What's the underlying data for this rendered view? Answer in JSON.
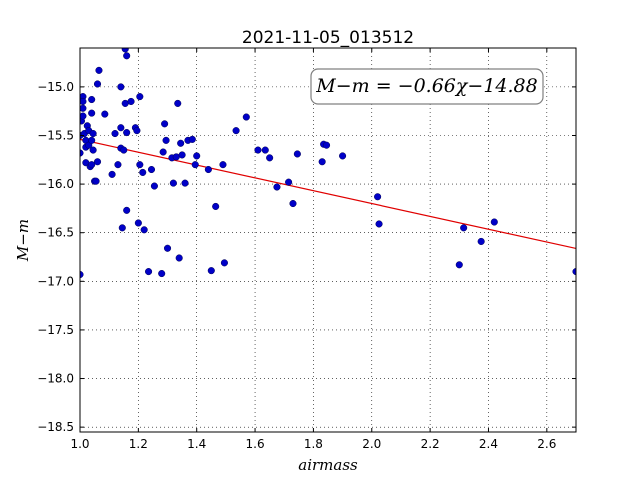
{
  "chart_data": {
    "type": "scatter",
    "title": "2021-11-05_013512",
    "xlabel": "airmass",
    "ylabel": "M−m",
    "xlim": [
      1.0,
      2.7
    ],
    "ylim": [
      -18.55,
      -14.6
    ],
    "xticks": [
      1.0,
      1.2,
      1.4,
      1.6,
      1.8,
      2.0,
      2.2,
      2.4,
      2.6
    ],
    "xtick_labels": [
      "1.0",
      "1.2",
      "1.4",
      "1.6",
      "1.8",
      "2.0",
      "2.2",
      "2.4",
      "2.6"
    ],
    "yticks": [
      -15.0,
      -15.5,
      -16.0,
      -16.5,
      -17.0,
      -17.5,
      -18.0,
      -18.5
    ],
    "ytick_labels": [
      "−15.0",
      "−15.5",
      "−16.0",
      "−16.5",
      "−17.0",
      "−17.5",
      "−18.0",
      "−18.5"
    ],
    "grid": true,
    "annotation": "M−m = −0.66χ−14.88",
    "annotation_position": "top-right",
    "fit": {
      "slope": -0.66,
      "intercept": -14.88,
      "color": "#e00000"
    },
    "point_color": "#0000c8",
    "points": [
      [
        1.0,
        -16.93
      ],
      [
        1.0,
        -15.5
      ],
      [
        1.0,
        -15.68
      ],
      [
        1.005,
        -15.35
      ],
      [
        1.01,
        -15.1
      ],
      [
        1.01,
        -15.15
      ],
      [
        1.01,
        -15.22
      ],
      [
        1.01,
        -15.3
      ],
      [
        1.015,
        -15.48
      ],
      [
        1.02,
        -15.55
      ],
      [
        1.02,
        -15.62
      ],
      [
        1.02,
        -15.78
      ],
      [
        1.025,
        -15.4
      ],
      [
        1.03,
        -15.45
      ],
      [
        1.03,
        -15.6
      ],
      [
        1.035,
        -15.82
      ],
      [
        1.04,
        -15.55
      ],
      [
        1.04,
        -15.8
      ],
      [
        1.04,
        -15.27
      ],
      [
        1.04,
        -15.13
      ],
      [
        1.045,
        -15.65
      ],
      [
        1.045,
        -15.48
      ],
      [
        1.05,
        -15.97
      ],
      [
        1.055,
        -15.97
      ],
      [
        1.06,
        -15.77
      ],
      [
        1.06,
        -14.97
      ],
      [
        1.065,
        -14.83
      ],
      [
        1.085,
        -15.28
      ],
      [
        1.11,
        -15.9
      ],
      [
        1.12,
        -15.48
      ],
      [
        1.13,
        -15.8
      ],
      [
        1.14,
        -15.0
      ],
      [
        1.14,
        -15.42
      ],
      [
        1.14,
        -15.63
      ],
      [
        1.145,
        -16.45
      ],
      [
        1.15,
        -15.65
      ],
      [
        1.155,
        -15.17
      ],
      [
        1.155,
        -14.61
      ],
      [
        1.16,
        -14.68
      ],
      [
        1.16,
        -15.47
      ],
      [
        1.16,
        -16.27
      ],
      [
        1.175,
        -15.15
      ],
      [
        1.19,
        -15.42
      ],
      [
        1.195,
        -15.45
      ],
      [
        1.2,
        -16.4
      ],
      [
        1.205,
        -15.1
      ],
      [
        1.205,
        -15.8
      ],
      [
        1.215,
        -15.88
      ],
      [
        1.22,
        -16.47
      ],
      [
        1.235,
        -16.9
      ],
      [
        1.245,
        -15.85
      ],
      [
        1.255,
        -16.02
      ],
      [
        1.28,
        -16.92
      ],
      [
        1.285,
        -15.67
      ],
      [
        1.29,
        -15.38
      ],
      [
        1.295,
        -15.55
      ],
      [
        1.3,
        -16.66
      ],
      [
        1.315,
        -15.73
      ],
      [
        1.32,
        -15.99
      ],
      [
        1.33,
        -15.72
      ],
      [
        1.335,
        -15.17
      ],
      [
        1.34,
        -16.76
      ],
      [
        1.345,
        -15.58
      ],
      [
        1.35,
        -15.7
      ],
      [
        1.36,
        -15.99
      ],
      [
        1.37,
        -15.55
      ],
      [
        1.385,
        -15.54
      ],
      [
        1.395,
        -15.8
      ],
      [
        1.4,
        -15.71
      ],
      [
        1.44,
        -15.85
      ],
      [
        1.45,
        -16.89
      ],
      [
        1.465,
        -16.23
      ],
      [
        1.49,
        -15.8
      ],
      [
        1.495,
        -16.81
      ],
      [
        1.535,
        -15.45
      ],
      [
        1.57,
        -15.31
      ],
      [
        1.61,
        -15.65
      ],
      [
        1.635,
        -15.65
      ],
      [
        1.65,
        -15.73
      ],
      [
        1.675,
        -16.03
      ],
      [
        1.715,
        -15.98
      ],
      [
        1.73,
        -16.2
      ],
      [
        1.745,
        -15.69
      ],
      [
        1.83,
        -15.77
      ],
      [
        1.835,
        -15.59
      ],
      [
        1.845,
        -15.6
      ],
      [
        1.9,
        -15.71
      ],
      [
        2.02,
        -16.13
      ],
      [
        2.025,
        -16.41
      ],
      [
        2.3,
        -16.83
      ],
      [
        2.315,
        -16.45
      ],
      [
        2.375,
        -16.59
      ],
      [
        2.42,
        -16.39
      ],
      [
        2.7,
        -16.9
      ]
    ]
  }
}
